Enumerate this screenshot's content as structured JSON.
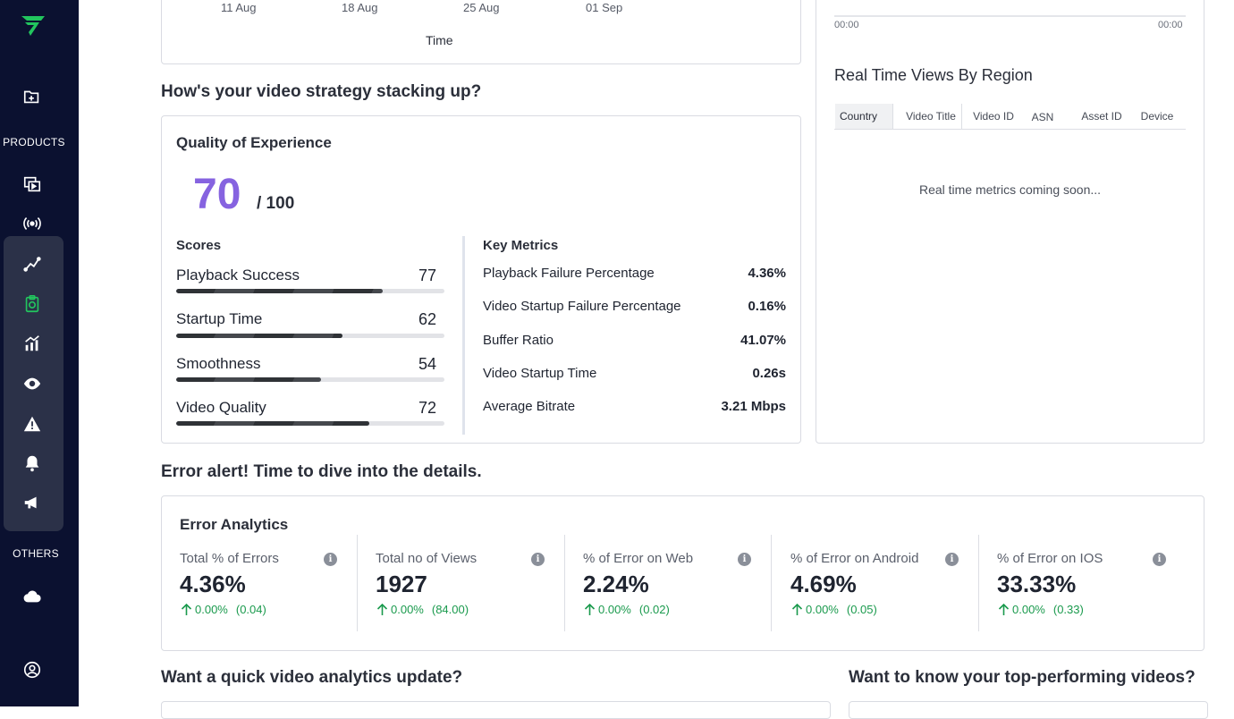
{
  "sidebar": {
    "products_label": "PRODUCTS",
    "others_label": "OTHERS",
    "icons": [
      "logo-icon",
      "folder-plus-icon",
      "media-library-icon",
      "live-stream-icon",
      "analytics-line-icon",
      "clipboard-report-icon",
      "bar-growth-icon",
      "eye-icon",
      "warning-icon",
      "bell-icon",
      "megaphone-icon",
      "cloud-icon",
      "user-circle-icon"
    ],
    "accent_color": "#22c55e"
  },
  "top_chart": {
    "x_ticks": [
      "11 Aug",
      "18 Aug",
      "25 Aug",
      "01 Sep"
    ],
    "xlabel": "Time"
  },
  "strategy": {
    "heading": "How's your video strategy stacking up?",
    "qoe": {
      "title": "Quality of Experience",
      "score": "70",
      "score_max": "/ 100",
      "score_color": "#8663e0",
      "scores_heading": "Scores",
      "scores": [
        {
          "label": "Playback Success",
          "value": "77",
          "fraction": 0.77
        },
        {
          "label": "Startup Time",
          "value": "62",
          "fraction": 0.62
        },
        {
          "label": "Smoothness",
          "value": "54",
          "fraction": 0.54
        },
        {
          "label": "Video Quality",
          "value": "72",
          "fraction": 0.72
        }
      ],
      "metrics_heading": "Key Metrics",
      "metrics": [
        {
          "label": "Playback Failure Percentage",
          "value": "4.36%"
        },
        {
          "label": "Video Startup Failure Percentage",
          "value": "0.16%"
        },
        {
          "label": "Buffer Ratio",
          "value": "41.07%"
        },
        {
          "label": "Video Startup Time",
          "value": "0.26s"
        },
        {
          "label": "Average Bitrate",
          "value": "3.21 Mbps"
        }
      ]
    }
  },
  "realtime": {
    "time_start": "00:00",
    "time_end": "00:00",
    "title": "Real Time Views By Region",
    "tabs": [
      "Country",
      "Video Title",
      "Video ID",
      "ASN",
      "Asset ID",
      "Device"
    ],
    "active_tab": "Country",
    "empty_message": "Real time metrics coming soon..."
  },
  "errors": {
    "heading": "Error alert! Time to dive into the details.",
    "card_title": "Error Analytics",
    "info_glyph": "i",
    "items": [
      {
        "label": "Total % of Errors",
        "value": "4.36%",
        "change": "0.00%",
        "prev": "(0.04)"
      },
      {
        "label": "Total no of Views",
        "value": "1927",
        "change": "0.00%",
        "prev": "(84.00)"
      },
      {
        "label": "% of Error on Web",
        "value": "2.24%",
        "change": "0.00%",
        "prev": "(0.02)"
      },
      {
        "label": "% of Error on Android",
        "value": "4.69%",
        "change": "0.00%",
        "prev": "(0.05)"
      },
      {
        "label": "% of Error on IOS",
        "value": "33.33%",
        "change": "0.00%",
        "prev": "(0.33)"
      }
    ]
  },
  "bottom": {
    "left_heading": "Want a quick video analytics update?",
    "right_heading": "Want to know your top-performing videos?"
  }
}
